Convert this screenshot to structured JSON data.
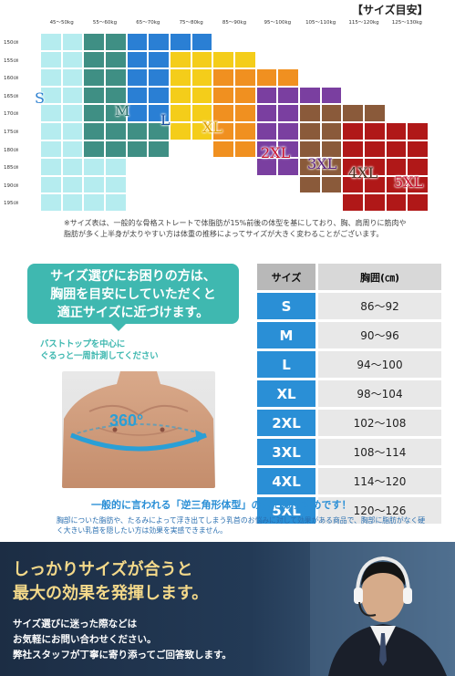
{
  "title": "【サイズ目安】",
  "weights": [
    "45～50kg",
    "55～60kg",
    "65～70kg",
    "75～80kg",
    "85～90kg",
    "95～100kg",
    "105～110kg",
    "115～120kg",
    "125～130kg"
  ],
  "heights": [
    "150㎝",
    "155㎝",
    "160㎝",
    "165㎝",
    "170㎝",
    "175㎝",
    "180㎝",
    "185㎝",
    "190㎝",
    "195㎝"
  ],
  "sizes": [
    {
      "label": "S",
      "color": "#b5ecef",
      "text_color": "#2a7fd0"
    },
    {
      "label": "M",
      "color": "#3f8f84",
      "text_color": "#2a6f6a"
    },
    {
      "label": "L",
      "color": "#2a7fd4",
      "text_color": "#1a4fa0"
    },
    {
      "label": "XL",
      "color": "#f4cd1a",
      "text_color": "#e0a000"
    },
    {
      "label": "2XL",
      "color": "#f09020",
      "text_color": "#c8102e"
    },
    {
      "label": "3XL",
      "color": "#7a3fa0",
      "text_color": "#5a2080"
    },
    {
      "label": "4XL",
      "color": "#8a5a3a",
      "text_color": "#4a3020"
    },
    {
      "label": "5XL",
      "color": "#b01818",
      "text_color": "#c8102e"
    }
  ],
  "note": "※サイズ表は、一般的な骨格ストレートで体脂肪が15%前後の体型を基にしており、胸、肩周りに筋肉や脂肪が多く上半身が太りやすい方は体重の推移によってサイズが大きく変わることがございます。",
  "bubble": {
    "line1": "サイズ選びにお困りの方は、",
    "line2": "胸囲を目安にしていただくと",
    "line3": "適正サイズに近づけます。"
  },
  "measure": {
    "line1": "バストトップを中心に",
    "line2": "ぐるっと一周計測してください",
    "degree": "360°"
  },
  "table": {
    "header_size": "サイズ",
    "header_chest": "胸囲(㎝)",
    "rows": [
      {
        "size": "S",
        "chest": "86～92"
      },
      {
        "size": "M",
        "chest": "90～96"
      },
      {
        "size": "L",
        "chest": "94～100"
      },
      {
        "size": "XL",
        "chest": "98～104"
      },
      {
        "size": "2XL",
        "chest": "102～108"
      },
      {
        "size": "3XL",
        "chest": "108～114"
      },
      {
        "size": "4XL",
        "chest": "114～120"
      },
      {
        "size": "5XL",
        "chest": "120～126"
      }
    ]
  },
  "recommend": "一般的に言われる「逆三角形体型」の方におすすめです！",
  "recommend_sub": "胸部についた脂肪や、たるみによって浮き出てしまう乳首のお悩みに対して効果がある商品で、胸部に脂肪がなく硬く大きい乳首を隠したい方は効果を実感できません。",
  "banner": {
    "head1": "しっかりサイズが合うと",
    "head2": "最大の効果を発揮します。",
    "body1": "サイズ選びに迷った際などは",
    "body2": "お気軽にお問い合わせください。",
    "body3": "弊社スタッフが丁寧に寄り添ってご回答致します。"
  }
}
